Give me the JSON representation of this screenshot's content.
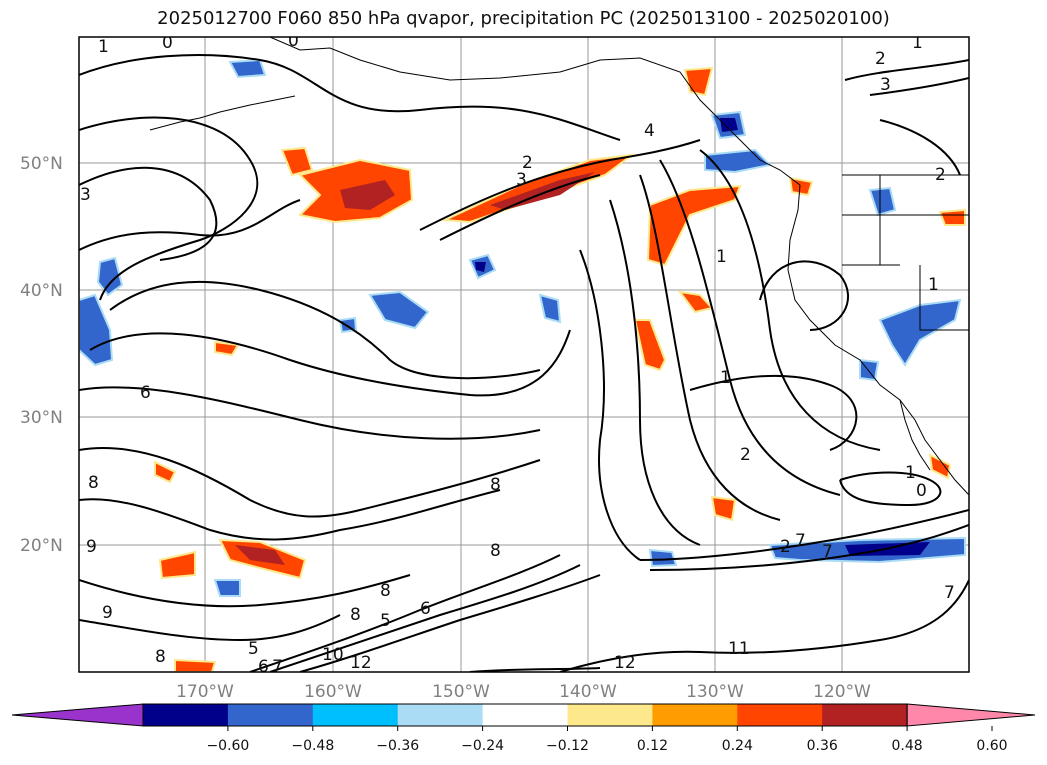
{
  "title": "2025012700 F060 850 hPa qvapor, precipitation PC (2025013100 - 2025020100)",
  "lat_labels": [
    "50°N",
    "40°N",
    "30°N",
    "20°N"
  ],
  "lon_labels": [
    "170°W",
    "160°W",
    "150°W",
    "140°W",
    "130°W",
    "120°W"
  ],
  "colorbar": {
    "ticks": [
      "−0.60",
      "−0.48",
      "−0.36",
      "−0.24",
      "−0.12",
      "0.12",
      "0.24",
      "0.36",
      "0.48",
      "0.60"
    ],
    "colors": [
      "#9933cc",
      "#00008b",
      "#3366cc",
      "#00bfff",
      "#aadcf5",
      "#ffffff",
      "#fde98c",
      "#ff9d00",
      "#ff4500",
      "#b22222",
      "#ff88aa"
    ]
  },
  "contour_labels": [
    "1",
    "0",
    "0",
    "1",
    "2",
    "3",
    "3",
    "2",
    "4",
    "2",
    "3",
    "1",
    "1",
    "2",
    "6",
    "8",
    "9",
    "8",
    "8",
    "9",
    "5",
    "8",
    "6",
    "5",
    "6",
    "7",
    "8",
    "10",
    "12",
    "8",
    "12",
    "11",
    "7",
    "7",
    "1",
    "0",
    "1",
    "2",
    "7"
  ]
}
